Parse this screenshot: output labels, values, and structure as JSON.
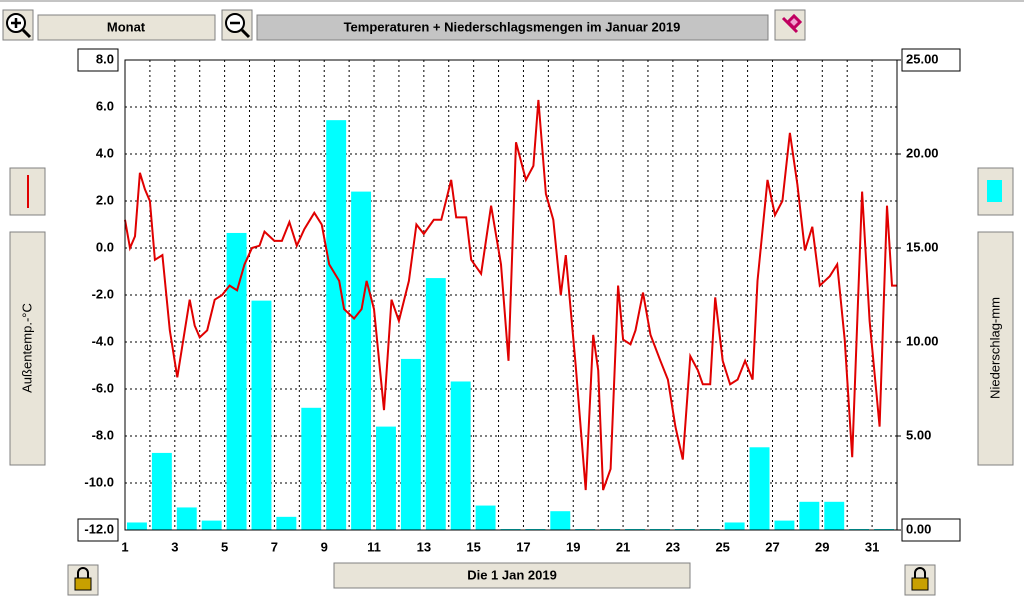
{
  "toolbar": {
    "period_button": "Monat",
    "date_button": "Die 1 Jan 2019"
  },
  "chart_data": {
    "type": "bar-line",
    "title": "Temperaturen + Niederschlagsmengen im Januar 2019",
    "y_label": "Außentemp.-°C",
    "y2_label": "Niederschlag-mm",
    "xlim": [
      1,
      32
    ],
    "xticks": [
      1,
      3,
      5,
      7,
      9,
      11,
      13,
      15,
      17,
      19,
      21,
      23,
      25,
      27,
      29,
      31
    ],
    "ylim": [
      -12,
      8
    ],
    "yticks": [
      {
        "value": 8,
        "label": "8.0"
      },
      {
        "value": 6,
        "label": "6.0"
      },
      {
        "value": 4,
        "label": "4.0"
      },
      {
        "value": 2,
        "label": "2.0"
      },
      {
        "value": 0,
        "label": "0.0"
      },
      {
        "value": -2,
        "label": "-2.0"
      },
      {
        "value": -4,
        "label": "-4.0"
      },
      {
        "value": -6,
        "label": "-6.0"
      },
      {
        "value": -8,
        "label": "-8.0"
      },
      {
        "value": -10,
        "label": "-10.0"
      },
      {
        "value": -12,
        "label": "-12.0"
      }
    ],
    "y2lim": [
      0,
      25
    ],
    "y2ticks": [
      {
        "value": 25,
        "label": "25.00"
      },
      {
        "value": 20,
        "label": "20.00"
      },
      {
        "value": 15,
        "label": "15.00"
      },
      {
        "value": 10,
        "label": "10.00"
      },
      {
        "value": 5,
        "label": "5.00"
      },
      {
        "value": 0,
        "label": "0.00"
      }
    ],
    "grid": true,
    "precipitation": {
      "type": "bar",
      "axis": "y2",
      "color": "#00ffff",
      "x": [
        1,
        2,
        3,
        4,
        5,
        6,
        7,
        8,
        9,
        10,
        11,
        12,
        13,
        14,
        15,
        16,
        17,
        18,
        19,
        20,
        21,
        22,
        23,
        24,
        25,
        26,
        27,
        28,
        29,
        30,
        31
      ],
      "values": [
        0.4,
        4.1,
        1.2,
        0.5,
        15.8,
        12.2,
        0.7,
        6.5,
        21.8,
        18.0,
        5.5,
        9.1,
        13.4,
        7.9,
        1.3,
        0,
        0,
        1.0,
        0,
        0,
        0,
        0,
        0,
        0,
        0.4,
        4.4,
        0.5,
        1.5,
        1.5,
        0,
        0
      ]
    },
    "temperature": {
      "type": "line",
      "color": "#e00000",
      "x": [
        1.0,
        1.2,
        1.4,
        1.6,
        1.8,
        2.0,
        2.2,
        2.5,
        2.8,
        3.1,
        3.4,
        3.6,
        3.8,
        4.0,
        4.3,
        4.6,
        4.9,
        5.2,
        5.5,
        5.8,
        6.1,
        6.4,
        6.6,
        7.0,
        7.3,
        7.6,
        7.9,
        8.2,
        8.6,
        8.9,
        9.2,
        9.6,
        9.8,
        10.2,
        10.5,
        10.7,
        11.0,
        11.4,
        11.7,
        12.0,
        12.4,
        12.7,
        13.0,
        13.4,
        13.7,
        14.1,
        14.3,
        14.7,
        14.9,
        15.3,
        15.7,
        16.1,
        16.4,
        16.7,
        17.1,
        17.4,
        17.6,
        17.9,
        18.2,
        18.5,
        18.7,
        19.1,
        19.5,
        19.8,
        20.0,
        20.2,
        20.5,
        20.8,
        21.0,
        21.3,
        21.5,
        21.8,
        22.1,
        22.5,
        22.8,
        23.1,
        23.4,
        23.7,
        24.0,
        24.2,
        24.5,
        24.7,
        25.0,
        25.3,
        25.6,
        25.9,
        26.2,
        26.4,
        26.8,
        27.1,
        27.4,
        27.7,
        28.0,
        28.3,
        28.6,
        28.9,
        29.3,
        29.6,
        29.9,
        30.2,
        30.6,
        30.9,
        31.3,
        31.6,
        31.8,
        32.0
      ],
      "values": [
        1.2,
        0,
        0.5,
        3.2,
        2.5,
        2.0,
        -0.5,
        -0.3,
        -3.5,
        -5.5,
        -3.5,
        -2.2,
        -3.3,
        -3.8,
        -3.5,
        -2.2,
        -2.0,
        -1.6,
        -1.8,
        -0.7,
        0.0,
        0.1,
        0.7,
        0.3,
        0.3,
        1.1,
        0.1,
        0.8,
        1.5,
        1.0,
        -0.7,
        -1.4,
        -2.6,
        -3.0,
        -2.6,
        -1.4,
        -2.6,
        -6.9,
        -2.2,
        -3.1,
        -1.4,
        1.0,
        0.6,
        1.2,
        1.2,
        2.9,
        1.3,
        1.3,
        -0.5,
        -1.1,
        1.8,
        -0.7,
        -4.8,
        4.5,
        2.9,
        3.5,
        6.3,
        2.3,
        1.2,
        -2.0,
        -0.3,
        -5.0,
        -10.3,
        -3.7,
        -5.2,
        -10.3,
        -9.4,
        -1.6,
        -3.9,
        -4.1,
        -3.5,
        -1.9,
        -3.7,
        -4.8,
        -5.6,
        -7.6,
        -9.0,
        -4.6,
        -5.2,
        -5.8,
        -5.8,
        -2.1,
        -4.8,
        -5.8,
        -5.6,
        -4.8,
        -5.6,
        -1.4,
        2.9,
        1.4,
        2.0,
        4.9,
        2.7,
        -0.1,
        0.9,
        -1.6,
        -1.2,
        -0.7,
        -3.9,
        -8.9,
        2.4,
        -3.1,
        -7.6,
        1.8,
        -1.6,
        -1.6
      ]
    }
  }
}
